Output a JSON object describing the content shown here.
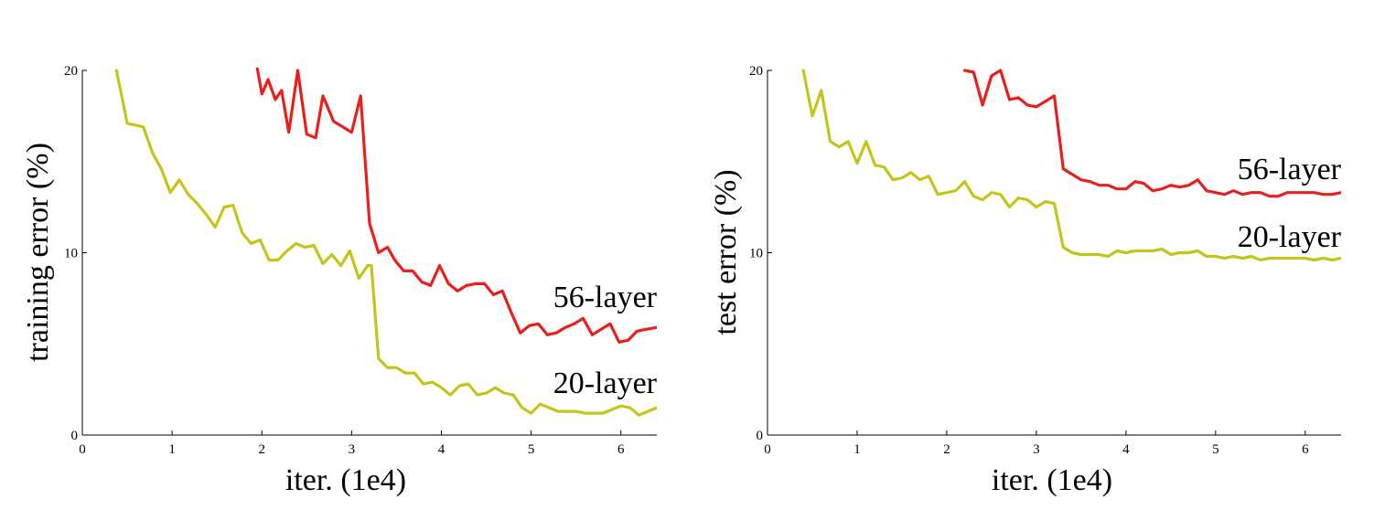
{
  "chart_data": [
    {
      "type": "line",
      "title": "",
      "xlabel": "iter. (1e4)",
      "ylabel": "training error (%)",
      "xlim": [
        0,
        6.4
      ],
      "ylim": [
        0,
        20
      ],
      "xticks": [
        "0",
        "1",
        "2",
        "3",
        "4",
        "5",
        "6"
      ],
      "yticks": [
        "0",
        "10",
        "20"
      ],
      "grid": false,
      "series": [
        {
          "name": "56-layer",
          "color": "#e8201c",
          "x": [
            1.95,
            2.0,
            2.07,
            2.15,
            2.22,
            2.3,
            2.4,
            2.5,
            2.6,
            2.68,
            2.8,
            2.9,
            3.0,
            3.1,
            3.2,
            3.3,
            3.4,
            3.48,
            3.58,
            3.68,
            3.78,
            3.88,
            3.98,
            4.08,
            4.18,
            4.28,
            4.38,
            4.48,
            4.58,
            4.68,
            4.78,
            4.88,
            4.98,
            5.08,
            5.18,
            5.28,
            5.38,
            5.48,
            5.58,
            5.68,
            5.78,
            5.88,
            5.98,
            6.08,
            6.18,
            6.28,
            6.4
          ],
          "y": [
            20.1,
            18.7,
            19.5,
            18.4,
            18.9,
            16.6,
            20.0,
            16.5,
            16.3,
            18.6,
            17.2,
            16.9,
            16.6,
            18.6,
            11.6,
            10.0,
            10.3,
            9.6,
            9.0,
            9.0,
            8.4,
            8.2,
            9.3,
            8.3,
            7.9,
            8.2,
            8.3,
            8.3,
            7.7,
            7.9,
            6.7,
            5.6,
            6.0,
            6.1,
            5.5,
            5.6,
            5.9,
            6.1,
            6.4,
            5.5,
            5.8,
            6.1,
            5.1,
            5.2,
            5.7,
            5.8,
            5.9
          ]
        },
        {
          "name": "20-layer",
          "color": "#c5c41b",
          "x": [
            0.38,
            0.5,
            0.68,
            0.78,
            0.88,
            0.98,
            1.08,
            1.18,
            1.28,
            1.38,
            1.48,
            1.58,
            1.68,
            1.78,
            1.88,
            1.98,
            2.08,
            2.18,
            2.28,
            2.38,
            2.48,
            2.58,
            2.68,
            2.78,
            2.88,
            2.98,
            3.08,
            3.18,
            3.22,
            3.3,
            3.4,
            3.5,
            3.6,
            3.7,
            3.8,
            3.9,
            4.0,
            4.1,
            4.2,
            4.3,
            4.4,
            4.5,
            4.6,
            4.7,
            4.8,
            4.9,
            5.0,
            5.1,
            5.2,
            5.3,
            5.4,
            5.5,
            5.6,
            5.7,
            5.8,
            5.9,
            6.0,
            6.1,
            6.2,
            6.3,
            6.4
          ],
          "y": [
            20.0,
            17.1,
            16.9,
            15.5,
            14.6,
            13.3,
            14.0,
            13.2,
            12.7,
            12.1,
            11.4,
            12.5,
            12.6,
            11.1,
            10.5,
            10.7,
            9.6,
            9.6,
            10.1,
            10.5,
            10.3,
            10.4,
            9.4,
            9.9,
            9.3,
            10.1,
            8.6,
            9.3,
            9.3,
            4.2,
            3.7,
            3.7,
            3.4,
            3.4,
            2.8,
            2.9,
            2.6,
            2.2,
            2.7,
            2.8,
            2.2,
            2.3,
            2.6,
            2.3,
            2.2,
            1.5,
            1.2,
            1.7,
            1.5,
            1.3,
            1.3,
            1.3,
            1.2,
            1.2,
            1.2,
            1.4,
            1.6,
            1.5,
            1.1,
            1.3,
            1.5
          ]
        }
      ]
    },
    {
      "type": "line",
      "title": "",
      "xlabel": "iter. (1e4)",
      "ylabel": "test error (%)",
      "xlim": [
        0,
        6.4
      ],
      "ylim": [
        0,
        20
      ],
      "xticks": [
        "0",
        "1",
        "2",
        "3",
        "4",
        "5",
        "6"
      ],
      "yticks": [
        "0",
        "10",
        "20"
      ],
      "grid": false,
      "series": [
        {
          "name": "56-layer",
          "color": "#e8201c",
          "x": [
            2.2,
            2.3,
            2.4,
            2.5,
            2.6,
            2.7,
            2.8,
            2.9,
            3.0,
            3.1,
            3.2,
            3.3,
            3.4,
            3.5,
            3.6,
            3.7,
            3.8,
            3.9,
            4.0,
            4.1,
            4.2,
            4.3,
            4.4,
            4.5,
            4.6,
            4.7,
            4.8,
            4.9,
            5.0,
            5.1,
            5.2,
            5.3,
            5.4,
            5.5,
            5.6,
            5.7,
            5.8,
            5.9,
            6.0,
            6.1,
            6.2,
            6.3,
            6.4
          ],
          "y": [
            20.0,
            19.9,
            18.1,
            19.7,
            20.0,
            18.4,
            18.5,
            18.1,
            18.0,
            18.3,
            18.6,
            14.6,
            14.3,
            14.0,
            13.9,
            13.7,
            13.7,
            13.5,
            13.5,
            13.9,
            13.8,
            13.4,
            13.5,
            13.7,
            13.6,
            13.7,
            14.0,
            13.4,
            13.3,
            13.2,
            13.4,
            13.2,
            13.3,
            13.3,
            13.1,
            13.1,
            13.3,
            13.3,
            13.3,
            13.3,
            13.2,
            13.2,
            13.3
          ]
        },
        {
          "name": "20-layer",
          "color": "#c5c41b",
          "x": [
            0.4,
            0.5,
            0.6,
            0.7,
            0.8,
            0.9,
            1.0,
            1.1,
            1.2,
            1.3,
            1.4,
            1.5,
            1.6,
            1.7,
            1.8,
            1.9,
            2.0,
            2.1,
            2.2,
            2.3,
            2.4,
            2.5,
            2.6,
            2.7,
            2.8,
            2.9,
            3.0,
            3.1,
            3.2,
            3.3,
            3.4,
            3.5,
            3.6,
            3.7,
            3.8,
            3.9,
            4.0,
            4.1,
            4.2,
            4.3,
            4.4,
            4.5,
            4.6,
            4.7,
            4.8,
            4.9,
            5.0,
            5.1,
            5.2,
            5.3,
            5.4,
            5.5,
            5.6,
            5.7,
            5.8,
            5.9,
            6.0,
            6.1,
            6.2,
            6.3,
            6.4
          ],
          "y": [
            20.0,
            17.5,
            18.9,
            16.1,
            15.8,
            16.1,
            14.9,
            16.1,
            14.8,
            14.7,
            14.0,
            14.1,
            14.4,
            14.0,
            14.2,
            13.2,
            13.3,
            13.4,
            13.9,
            13.1,
            12.9,
            13.3,
            13.2,
            12.5,
            13.0,
            12.9,
            12.5,
            12.8,
            12.7,
            10.3,
            10.0,
            9.9,
            9.9,
            9.9,
            9.8,
            10.1,
            10.0,
            10.1,
            10.1,
            10.1,
            10.2,
            9.9,
            10.0,
            10.0,
            10.1,
            9.8,
            9.8,
            9.7,
            9.8,
            9.7,
            9.8,
            9.6,
            9.7,
            9.7,
            9.7,
            9.7,
            9.7,
            9.6,
            9.7,
            9.6,
            9.7
          ]
        }
      ]
    }
  ]
}
